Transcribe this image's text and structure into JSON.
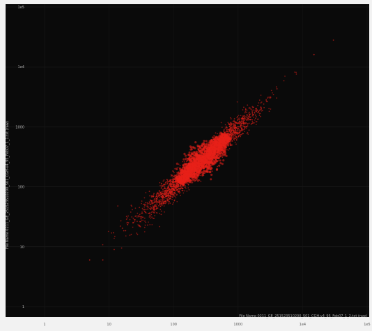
{
  "chart_data": {
    "type": "scatter",
    "title": "",
    "xlabel": "File Name 0211_GE_251523510200_S01_CGH-v4_95_Feb07_1_2.txt (raw)",
    "ylabel": "File Name 0211_GE_251523510200_S01_CGH-v4_95_Feb07_1_1.txt (raw)",
    "x_scale": "log",
    "y_scale": "log",
    "xlim": [
      1,
      100000
    ],
    "ylim": [
      1,
      100000
    ],
    "x_ticks": [
      "1",
      "10",
      "100",
      "1000",
      "1e4",
      "1e5"
    ],
    "y_ticks": [
      "1",
      "10",
      "100",
      "1000",
      "1e4",
      "1e5"
    ],
    "grid": true,
    "legend": "none",
    "background_color": "#0a0a0a",
    "point_color": "#e8201a",
    "series": [
      {
        "distribution": "log-normal cloud along y = x",
        "center": [
          250,
          250
        ],
        "dense_core_x_range": [
          120,
          700
        ],
        "points": [
          [
            5,
            6
          ],
          [
            8,
            6
          ],
          [
            12,
            9
          ],
          [
            20,
            25
          ],
          [
            30,
            22
          ],
          [
            50,
            60
          ],
          [
            70,
            55
          ],
          [
            100,
            110
          ],
          [
            150,
            140
          ],
          [
            200,
            230
          ],
          [
            250,
            260
          ],
          [
            300,
            280
          ],
          [
            400,
            420
          ],
          [
            500,
            480
          ],
          [
            700,
            720
          ],
          [
            1000,
            950
          ],
          [
            1500,
            1600
          ],
          [
            2500,
            2400
          ],
          [
            4000,
            4300
          ],
          [
            8000,
            7600
          ],
          [
            15000,
            16000
          ],
          [
            30000,
            28000
          ]
        ]
      }
    ]
  }
}
